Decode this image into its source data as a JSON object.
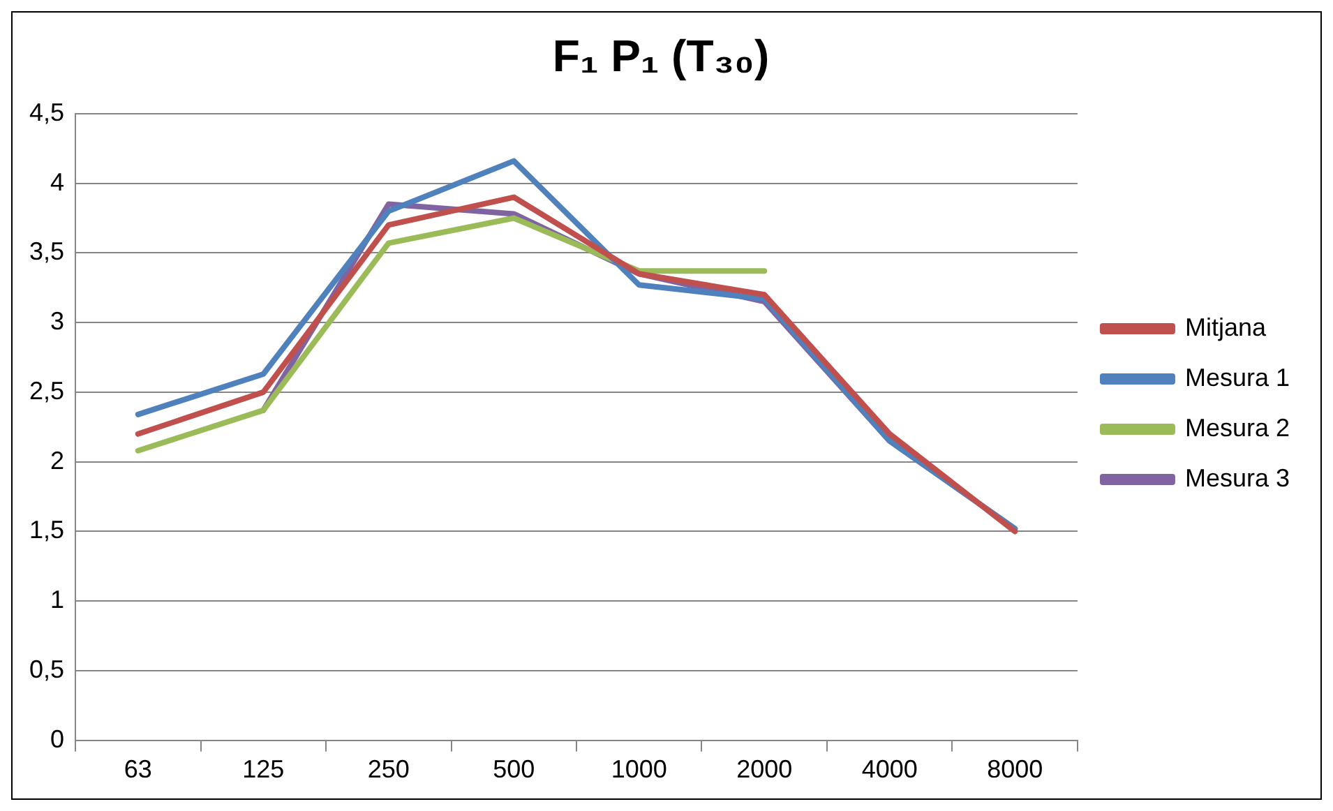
{
  "chart_data": {
    "type": "line",
    "title": "F₁ P₁ (T₃₀)",
    "categories": [
      "63",
      "125",
      "250",
      "500",
      "1000",
      "2000",
      "4000",
      "8000"
    ],
    "series": [
      {
        "name": "Mitjana",
        "color": "#c0504d",
        "values": [
          2.2,
          2.5,
          3.7,
          3.9,
          3.35,
          3.2,
          2.2,
          1.5
        ]
      },
      {
        "name": "Mesura 1",
        "color": "#4f81bd",
        "values": [
          2.34,
          2.63,
          3.8,
          4.16,
          3.27,
          3.17,
          2.15,
          1.52
        ]
      },
      {
        "name": "Mesura 2",
        "color": "#9bbb59",
        "values": [
          2.08,
          2.37,
          3.57,
          3.75,
          3.37,
          3.37,
          null,
          null
        ]
      },
      {
        "name": "Mesura 3",
        "color": "#8064a2",
        "values": [
          null,
          2.37,
          3.85,
          3.78,
          3.35,
          3.15,
          2.15,
          1.52
        ]
      }
    ],
    "ylim": [
      0,
      4.5
    ],
    "yticks": [
      0,
      {
        "value": 0.5,
        "label": "0,5"
      },
      1,
      {
        "value": 1.5,
        "label": "1,5"
      },
      2,
      {
        "value": 2.5,
        "label": "2,5"
      },
      3,
      {
        "value": 3.5,
        "label": "3,5"
      },
      4,
      {
        "value": 4.5,
        "label": "4,5"
      }
    ],
    "grid": "y",
    "legend": "right",
    "marker": "none",
    "line_style": "solid"
  }
}
